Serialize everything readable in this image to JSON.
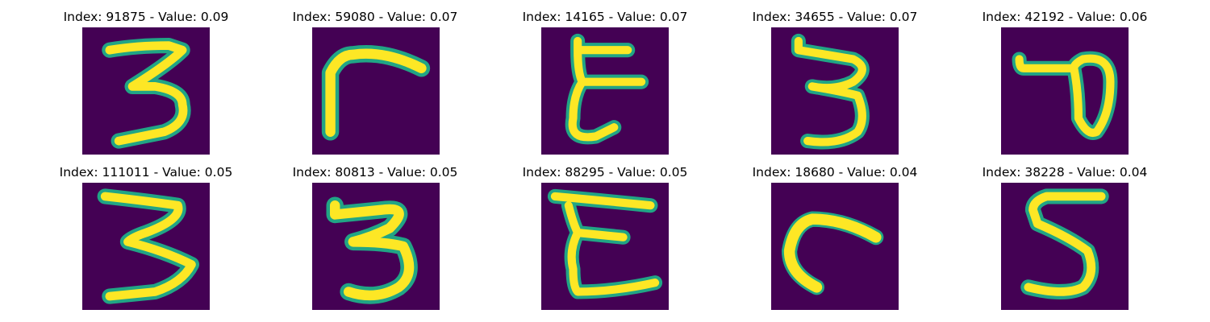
{
  "panels": [
    {
      "index": "91875",
      "value": "0.09",
      "title": "Index: 91875 - Value: 0.09",
      "glyph": "digit-3-icon"
    },
    {
      "index": "59080",
      "value": "0.07",
      "title": "Index: 59080 - Value: 0.07",
      "glyph": "corner-stroke-icon"
    },
    {
      "index": "14165",
      "value": "0.07",
      "title": "Index: 14165 - Value: 0.07",
      "glyph": "letter-epsilon-icon"
    },
    {
      "index": "34655",
      "value": "0.07",
      "title": "Index: 34655 - Value: 0.07",
      "glyph": "digit-3-icon"
    },
    {
      "index": "42192",
      "value": "0.06",
      "title": "Index: 42192 - Value: 0.06",
      "glyph": "loop-stroke-icon"
    },
    {
      "index": "111011",
      "value": "0.05",
      "title": "Index: 111011 - Value: 0.05",
      "glyph": "digit-3-icon"
    },
    {
      "index": "80813",
      "value": "0.05",
      "title": "Index: 80813 - Value: 0.05",
      "glyph": "digit-3-icon"
    },
    {
      "index": "88295",
      "value": "0.05",
      "title": "Index: 88295 - Value: 0.05",
      "glyph": "letter-epsilon-icon"
    },
    {
      "index": "18680",
      "value": "0.04",
      "title": "Index: 18680 - Value: 0.04",
      "glyph": "arc-stroke-icon"
    },
    {
      "index": "38228",
      "value": "0.04",
      "title": "Index: 38228 - Value: 0.04",
      "glyph": "digit-5-icon"
    }
  ],
  "colors": {
    "background": "#440154",
    "mid": "#21a585",
    "high": "#fde725"
  }
}
